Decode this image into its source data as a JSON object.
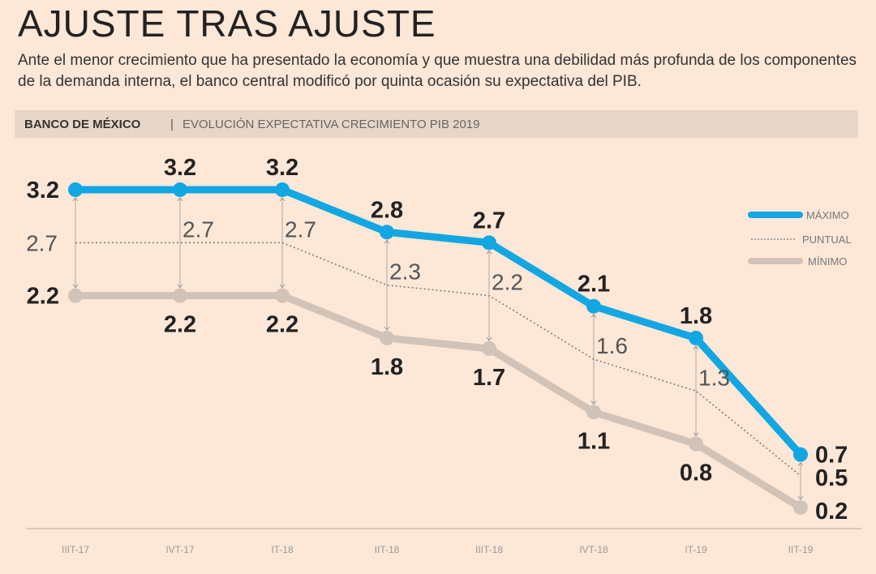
{
  "header": {
    "title": "AJUSTE TRAS AJUSTE",
    "subtitle": "Ante el menor crecimiento que ha presentado la economía y que muestra una debilidad más profunda de los componentes de la demanda interna, el banco central modificó por quinta ocasión su expectativa del PIB.",
    "source": "BANCO DE MÉXICO",
    "separator": "|",
    "chart_title": "EVOLUCIÓN EXPECTATIVA CRECIMIENTO PIB 2019"
  },
  "chart_data": {
    "type": "line",
    "title": "EVOLUCIÓN EXPECTATIVA CRECIMIENTO PIB 2019",
    "categories": [
      "IIIT-17",
      "IVT-17",
      "IT-18",
      "IIT-18",
      "IIIT-18",
      "IVT-18",
      "IT-19",
      "IIT-19"
    ],
    "series": [
      {
        "name": "MÁXIMO",
        "color": "#12a7e3",
        "values": [
          3.2,
          3.2,
          3.2,
          2.8,
          2.7,
          2.1,
          1.8,
          0.7
        ],
        "labels": [
          "3.2",
          "3.2",
          "3.2",
          "2.8",
          "2.7",
          "2.1",
          "1.8",
          "0.7"
        ]
      },
      {
        "name": "PUNTUAL",
        "color": "#777777",
        "values": [
          2.7,
          2.7,
          2.7,
          2.3,
          2.2,
          1.6,
          1.3,
          0.5
        ],
        "labels": [
          "2.7",
          "2.7",
          "2.7",
          "2.3",
          "2.2",
          "1.6",
          "1.3",
          "0.5"
        ]
      },
      {
        "name": "MÍNIMO",
        "color": "#d2c3b8",
        "values": [
          2.2,
          2.2,
          2.2,
          1.8,
          1.7,
          1.1,
          0.8,
          0.2
        ],
        "labels": [
          "2.2",
          "2.2",
          "2.2",
          "1.8",
          "1.7",
          "1.1",
          "0.8",
          "0.2"
        ]
      }
    ],
    "ylim": [
      0.2,
      3.2
    ],
    "legend": "top-right",
    "grid": false
  }
}
